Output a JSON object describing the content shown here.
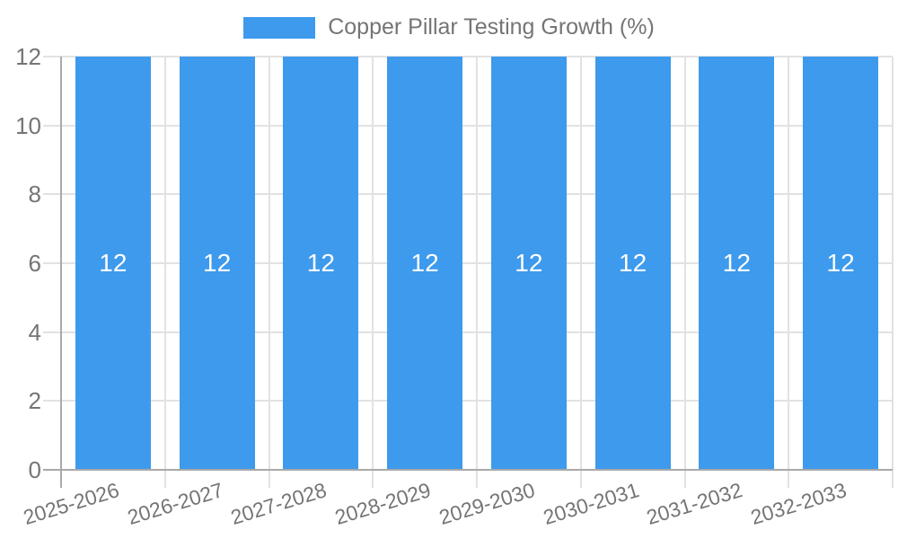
{
  "chart_data": {
    "type": "bar",
    "title": "Copper Pillar Testing Growth (%)",
    "categories": [
      "2025-2026",
      "2026-2027",
      "2027-2028",
      "2028-2029",
      "2029-2030",
      "2030-2031",
      "2031-2032",
      "2032-2033"
    ],
    "values": [
      12,
      12,
      12,
      12,
      12,
      12,
      12,
      12
    ],
    "value_labels": [
      "12",
      "12",
      "12",
      "12",
      "12",
      "12",
      "12",
      "12"
    ],
    "xlabel": "",
    "ylabel": "",
    "ylim": [
      0,
      12
    ],
    "yticks": [
      0,
      2,
      4,
      6,
      8,
      10,
      12
    ],
    "grid": true,
    "legend_position": "top"
  },
  "colors": {
    "bar": "#3e9aec",
    "text": "#757575",
    "grid": "#e2e2e2",
    "axis": "#a9a9a9",
    "value_label": "#ffffff",
    "background": "#ffffff"
  }
}
